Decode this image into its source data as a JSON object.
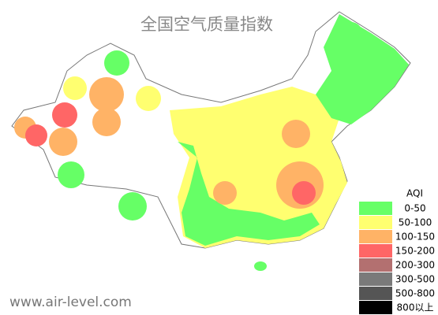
{
  "title": "全国空气质量指数",
  "legend": {
    "title": "AQI",
    "items": [
      {
        "label": "0-50",
        "color": "#66ff66"
      },
      {
        "label": "50-100",
        "color": "#ffff70"
      },
      {
        "label": "100-150",
        "color": "#ffb366"
      },
      {
        "label": "150-200",
        "color": "#ff6666"
      },
      {
        "label": "200-300",
        "color": "#b37070"
      },
      {
        "label": "300-500",
        "color": "#7a7a7a"
      },
      {
        "label": "500-800",
        "color": "#555555"
      },
      {
        "label": "800以上",
        "color": "#000000"
      }
    ]
  },
  "watermark": "www.air-level.com"
}
